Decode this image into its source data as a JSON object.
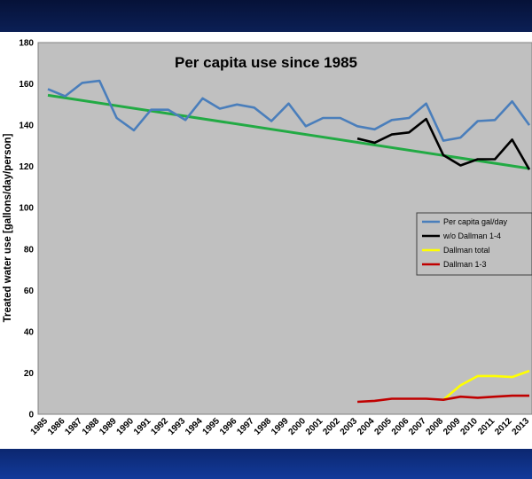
{
  "chart_data": {
    "type": "line",
    "title": "Per capita use since 1985",
    "xlabel": "",
    "ylabel": "Treated water use [gallons/day/person]",
    "ylim": [
      0,
      180
    ],
    "yticks": [
      0,
      20,
      40,
      60,
      80,
      100,
      120,
      140,
      160,
      180
    ],
    "x": [
      "1985",
      "1986",
      "1987",
      "1988",
      "1989",
      "1990",
      "1991",
      "1992",
      "1993",
      "1994",
      "1995",
      "1996",
      "1997",
      "1998",
      "1999",
      "2000",
      "2001",
      "2002",
      "2003",
      "2004",
      "2005",
      "2006",
      "2007",
      "2008",
      "2009",
      "2010",
      "2011",
      "2012",
      "2013"
    ],
    "grid": false,
    "legend_position": "right",
    "series": [
      {
        "name": "Per capita gal/day",
        "color": "#4a7ebb",
        "values": [
          157.5,
          154,
          160.5,
          161.5,
          143.5,
          137.5,
          147.5,
          147.5,
          142.5,
          153,
          148,
          150,
          148.5,
          142,
          150.5,
          139.5,
          143.5,
          143.5,
          139.5,
          138,
          142.5,
          143.5,
          150.5,
          132.5,
          134,
          142,
          142.5,
          151.5,
          140
        ]
      },
      {
        "name": "w/o Dallman 1-4",
        "color": "#000000",
        "values": [
          null,
          null,
          null,
          null,
          null,
          null,
          null,
          null,
          null,
          null,
          null,
          null,
          null,
          null,
          null,
          null,
          null,
          null,
          133.5,
          131.5,
          135.5,
          136.5,
          143,
          125.5,
          120.5,
          123.5,
          123.5,
          133,
          118.5
        ]
      },
      {
        "name": "Dallman total",
        "color": "#ffff00",
        "values": [
          null,
          null,
          null,
          null,
          null,
          null,
          null,
          null,
          null,
          null,
          null,
          null,
          null,
          null,
          null,
          null,
          null,
          null,
          null,
          null,
          null,
          null,
          null,
          7,
          14,
          18.5,
          18.5,
          18,
          21
        ]
      },
      {
        "name": "Dallman 1-3",
        "color": "#c00000",
        "values": [
          null,
          null,
          null,
          null,
          null,
          null,
          null,
          null,
          null,
          null,
          null,
          null,
          null,
          null,
          null,
          null,
          null,
          null,
          6,
          6.5,
          7.5,
          7.5,
          7.5,
          7,
          8.5,
          8,
          8.5,
          9,
          9
        ]
      }
    ],
    "trendline": {
      "color": "#22aa44",
      "values": {
        "1985": 154.5,
        "2013": 119
      }
    }
  }
}
